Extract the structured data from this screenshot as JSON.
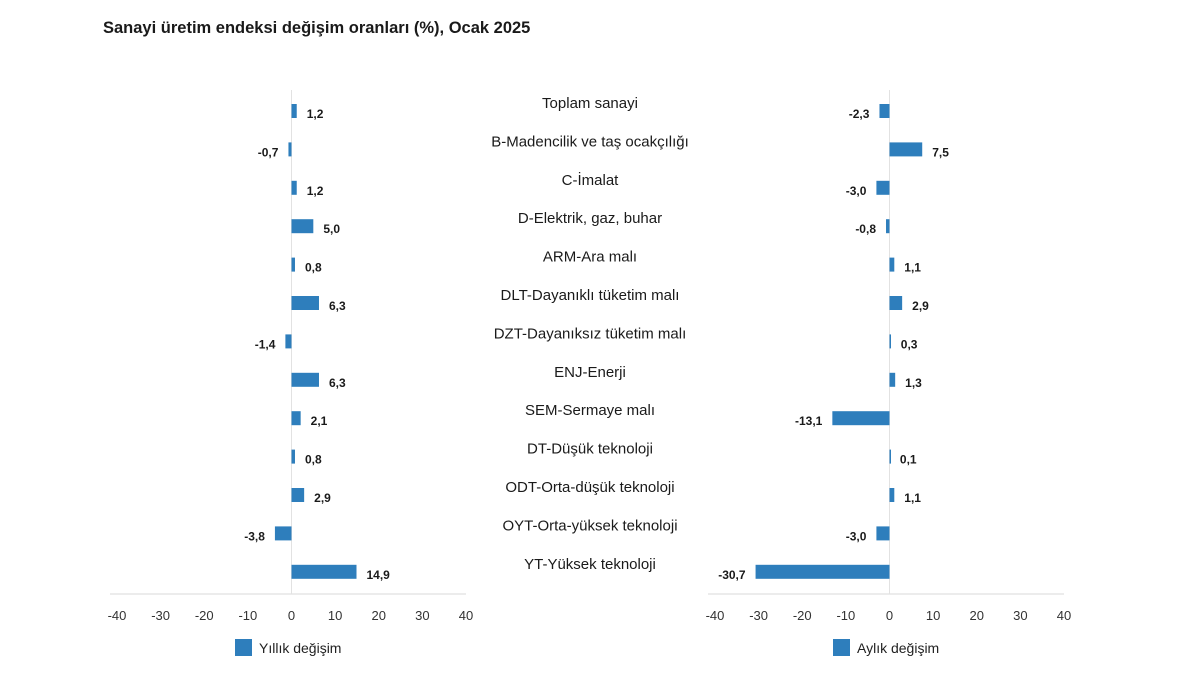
{
  "title": "Sanayi üretim endeksi değişim oranları (%), Ocak 2025",
  "chart_data": {
    "type": "bar",
    "orientation": "horizontal",
    "title": "Sanayi üretim endeksi değişim oranları (%), Ocak 2025",
    "categories": [
      "Toplam sanayi",
      "B-Madencilik ve taş ocakçılığı",
      "C-İmalat",
      "D-Elektrik, gaz, buhar",
      "ARM-Ara malı",
      "DLT-Dayanıklı tüketim malı",
      "DZT-Dayanıksız tüketim malı",
      "ENJ-Enerji",
      "SEM-Sermaye malı",
      "DT-Düşük teknoloji",
      "ODT-Orta-düşük teknoloji",
      "OYT-Orta-yüksek teknoloji",
      "YT-Yüksek teknoloji"
    ],
    "series": [
      {
        "name": "Yıllık değişim",
        "values": [
          1.2,
          -0.7,
          1.2,
          5.0,
          0.8,
          6.3,
          -1.4,
          6.3,
          2.1,
          0.8,
          2.9,
          -3.8,
          14.9
        ],
        "labels": [
          "1,2",
          "-0,7",
          "1,2",
          "5,0",
          "0,8",
          "6,3",
          "-1,4",
          "6,3",
          "2,1",
          "0,8",
          "2,9",
          "-3,8",
          "14,9"
        ],
        "xlim": [
          -40,
          40
        ],
        "ticks": [
          -40,
          -30,
          -20,
          -10,
          0,
          10,
          20,
          30,
          40
        ]
      },
      {
        "name": "Aylık değişim",
        "values": [
          -2.3,
          7.5,
          -3.0,
          -0.8,
          1.1,
          2.9,
          0.3,
          1.3,
          -13.1,
          0.1,
          1.1,
          -3.0,
          -30.7
        ],
        "labels": [
          "-2,3",
          "7,5",
          "-3,0",
          "-0,8",
          "1,1",
          "2,9",
          "0,3",
          "1,3",
          "-13,1",
          "0,1",
          "1,1",
          "-3,0",
          "-30,7"
        ],
        "xlim": [
          -40,
          40
        ],
        "ticks": [
          -40,
          -30,
          -20,
          -10,
          0,
          10,
          20,
          30,
          40
        ]
      }
    ],
    "bar_color": "#2e7ebc",
    "legend_position": "bottom"
  }
}
